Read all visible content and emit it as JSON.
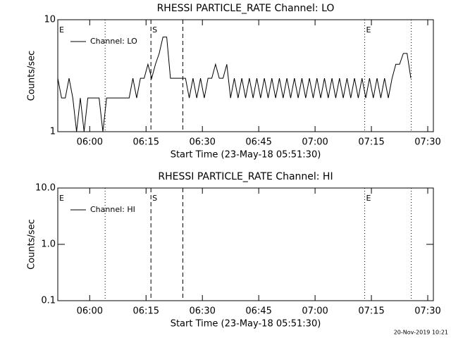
{
  "chart_data": [
    {
      "type": "line",
      "title": "RHESSI PARTICLE_RATE Channel: LO",
      "x_label": "Start Time (23-May-18 05:51:30)",
      "y_label": "Counts/sec",
      "log_y": true,
      "xlim": [
        0,
        100
      ],
      "ylim": [
        1,
        10
      ],
      "xticks": [
        {
          "value": 8.5,
          "label": "06:00"
        },
        {
          "value": 23.5,
          "label": "06:15"
        },
        {
          "value": 38.5,
          "label": "06:30"
        },
        {
          "value": 53.5,
          "label": "06:45"
        },
        {
          "value": 68.5,
          "label": "07:00"
        },
        {
          "value": 83.5,
          "label": "07:15"
        },
        {
          "value": 98.5,
          "label": "07:30"
        }
      ],
      "yticks": [
        1,
        10
      ],
      "vlines": [
        {
          "x": 12.6,
          "style": "dotted"
        },
        {
          "x": 24.8,
          "style": "dashed"
        },
        {
          "x": 33.3,
          "style": "dashed"
        },
        {
          "x": 81.7,
          "style": "dotted"
        },
        {
          "x": 94.1,
          "style": "dotted"
        }
      ],
      "annotations": [
        {
          "x": 0,
          "text": "E"
        },
        {
          "x": 24.8,
          "text": "S"
        },
        {
          "x": 81.7,
          "text": "E"
        }
      ],
      "x": [
        0,
        1,
        2,
        3,
        4,
        5,
        6,
        7,
        8,
        9,
        10,
        11,
        12,
        13,
        14,
        15,
        16,
        17,
        18,
        19,
        20,
        21,
        22,
        23,
        24,
        25,
        26,
        27,
        28,
        29,
        30,
        31,
        32,
        33,
        34,
        35,
        36,
        37,
        38,
        39,
        40,
        41,
        42,
        43,
        44,
        45,
        46,
        47,
        48,
        49,
        50,
        51,
        52,
        53,
        54,
        55,
        56,
        57,
        58,
        59,
        60,
        61,
        62,
        63,
        64,
        65,
        66,
        67,
        68,
        69,
        70,
        71,
        72,
        73,
        74,
        75,
        76,
        77,
        78,
        79,
        80,
        81,
        82,
        83,
        84,
        85,
        86,
        87,
        88,
        89,
        90,
        91,
        92,
        93,
        94
      ],
      "series": [
        {
          "name": "Channel: LO",
          "color": "#000000",
          "values": [
            3,
            2,
            2,
            3,
            2,
            1,
            2,
            1,
            2,
            2,
            2,
            2,
            1,
            2,
            2,
            2,
            2,
            2,
            2,
            2,
            3,
            2,
            3,
            3,
            4,
            3,
            4,
            5,
            7,
            7,
            3,
            3,
            3,
            3,
            3,
            2,
            3,
            2,
            3,
            2,
            3,
            3,
            4,
            3,
            3,
            4,
            2,
            3,
            2,
            3,
            2,
            3,
            2,
            3,
            2,
            3,
            2,
            3,
            2,
            3,
            2,
            3,
            2,
            3,
            2,
            3,
            2,
            3,
            2,
            3,
            2,
            3,
            2,
            3,
            2,
            3,
            2,
            3,
            2,
            3,
            2,
            3,
            2,
            3,
            2,
            3,
            2,
            3,
            2,
            3,
            4,
            4,
            5,
            5,
            3
          ]
        }
      ]
    },
    {
      "type": "line",
      "title": "RHESSI PARTICLE_RATE Channel: HI",
      "x_label": "Start Time (23-May-18 05:51:30)",
      "y_label": "Counts/sec",
      "log_y": true,
      "xlim": [
        0,
        100
      ],
      "ylim": [
        0.1,
        10
      ],
      "xticks": [
        {
          "value": 8.5,
          "label": "06:00"
        },
        {
          "value": 23.5,
          "label": "06:15"
        },
        {
          "value": 38.5,
          "label": "06:30"
        },
        {
          "value": 53.5,
          "label": "06:45"
        },
        {
          "value": 68.5,
          "label": "07:00"
        },
        {
          "value": 83.5,
          "label": "07:15"
        },
        {
          "value": 98.5,
          "label": "07:30"
        }
      ],
      "yticks": [
        0.1,
        {
          "value": 1,
          "label": "1.0"
        },
        {
          "value": 10,
          "label": "10.0"
        }
      ],
      "vlines": [
        {
          "x": 12.6,
          "style": "dotted"
        },
        {
          "x": 24.8,
          "style": "dashed"
        },
        {
          "x": 33.3,
          "style": "dashed"
        },
        {
          "x": 81.7,
          "style": "dotted"
        },
        {
          "x": 94.1,
          "style": "dotted"
        }
      ],
      "annotations": [
        {
          "x": 0,
          "text": "E"
        },
        {
          "x": 24.8,
          "text": "S"
        },
        {
          "x": 81.7,
          "text": "E"
        }
      ],
      "x": [],
      "series": [
        {
          "name": "Channel: HI",
          "color": "#000000",
          "values": []
        }
      ]
    }
  ],
  "footer": "20-Nov-2019 10:21"
}
